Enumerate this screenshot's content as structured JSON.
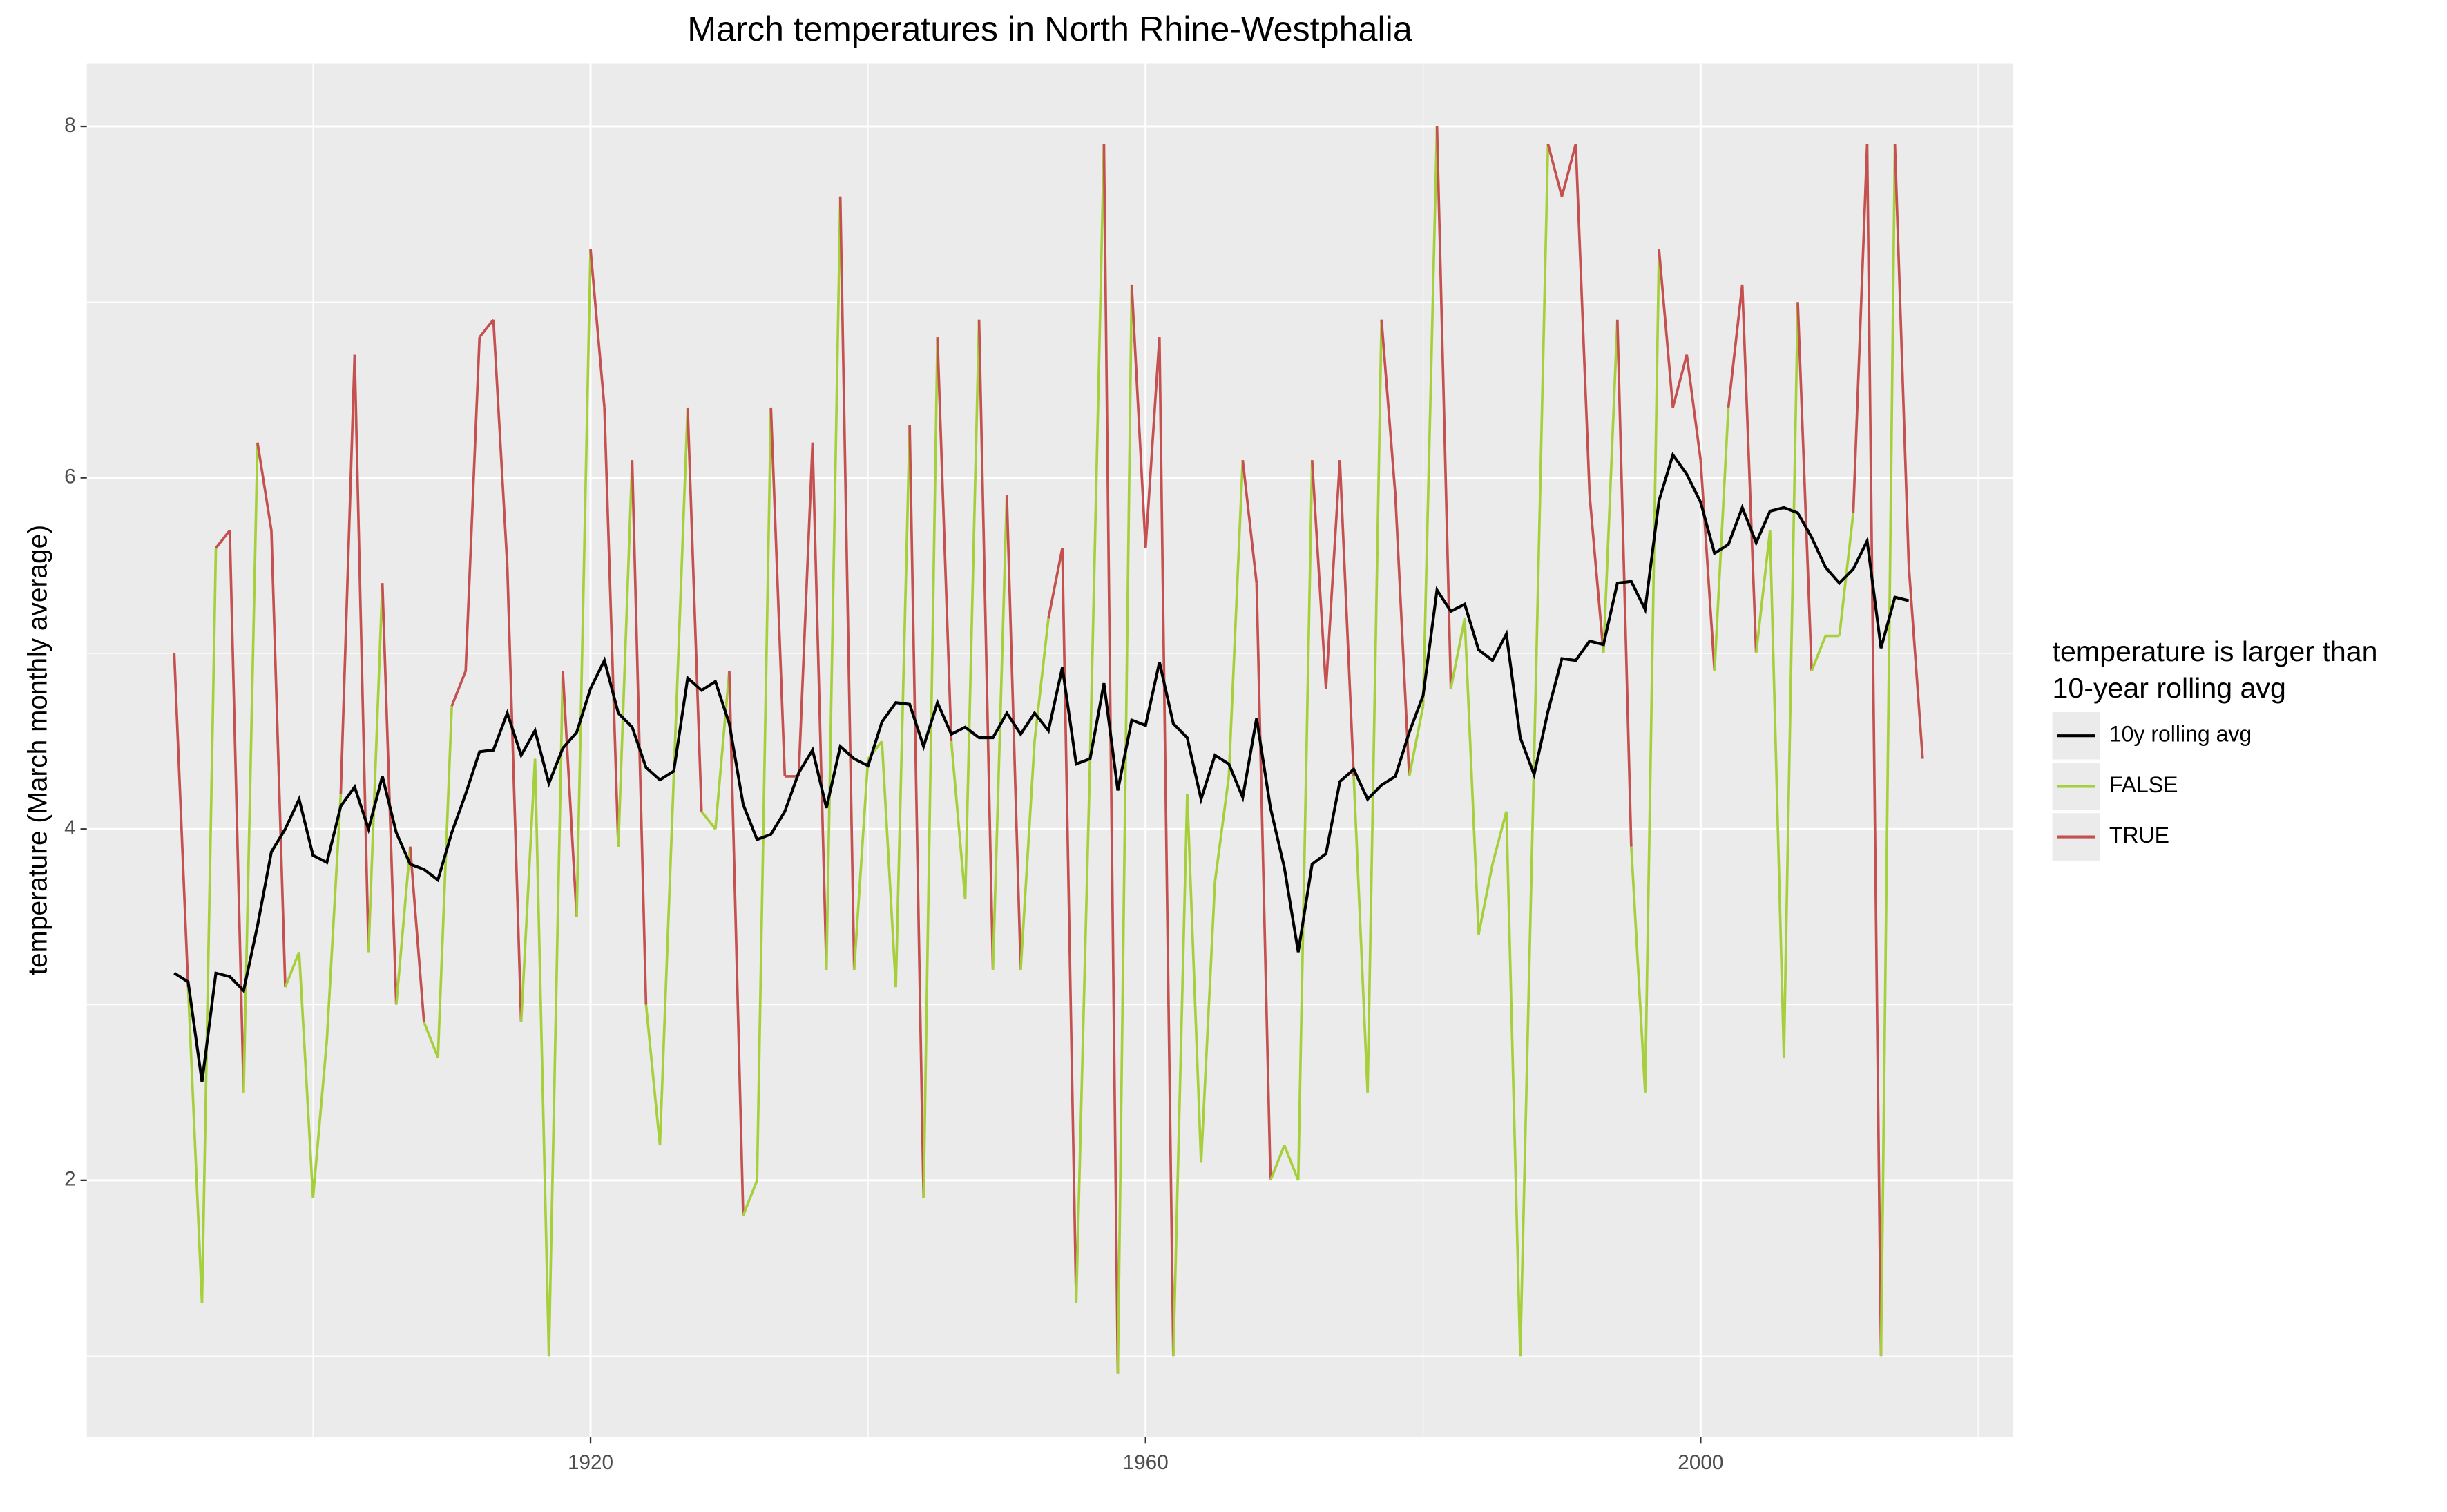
{
  "chart_data": {
    "type": "line",
    "title": "March temperatures in North Rhine-Westphalia",
    "ylabel": "temperature (March monthly average)",
    "legend_title": [
      "temperature is larger than",
      "10-year rolling avg"
    ],
    "legend": "right",
    "grid": true,
    "xlim": [
      1883.7,
      2022.5
    ],
    "ylim": [
      0.54,
      8.36
    ],
    "xticks": [
      1920,
      1960,
      2000
    ],
    "yticks": [
      2,
      4,
      6,
      8
    ],
    "x": [
      1890,
      1891,
      1892,
      1893,
      1894,
      1895,
      1896,
      1897,
      1898,
      1899,
      1900,
      1901,
      1902,
      1903,
      1904,
      1905,
      1906,
      1907,
      1908,
      1909,
      1910,
      1911,
      1912,
      1913,
      1914,
      1915,
      1916,
      1917,
      1918,
      1919,
      1920,
      1921,
      1922,
      1923,
      1924,
      1925,
      1926,
      1927,
      1928,
      1929,
      1930,
      1931,
      1932,
      1933,
      1934,
      1935,
      1936,
      1937,
      1938,
      1939,
      1940,
      1941,
      1942,
      1943,
      1944,
      1945,
      1946,
      1947,
      1948,
      1949,
      1950,
      1951,
      1952,
      1953,
      1954,
      1955,
      1956,
      1957,
      1958,
      1959,
      1960,
      1961,
      1962,
      1963,
      1964,
      1965,
      1966,
      1967,
      1968,
      1969,
      1970,
      1971,
      1972,
      1973,
      1974,
      1975,
      1976,
      1977,
      1978,
      1979,
      1980,
      1981,
      1982,
      1983,
      1984,
      1985,
      1986,
      1987,
      1988,
      1989,
      1990,
      1991,
      1992,
      1993,
      1994,
      1995,
      1996,
      1997,
      1998,
      1999,
      2000,
      2001,
      2002,
      2003,
      2004,
      2005,
      2006,
      2007,
      2008,
      2009,
      2010,
      2011,
      2012,
      2013,
      2014,
      2015,
      2016
    ],
    "series": [
      {
        "name": "10y rolling avg",
        "color": "#000000",
        "values": [
          3.18,
          3.13,
          2.56,
          3.18,
          3.16,
          3.08,
          3.45,
          3.87,
          4.0,
          4.17,
          3.85,
          3.81,
          4.13,
          4.24,
          4.0,
          4.3,
          3.98,
          3.8,
          3.77,
          3.71,
          3.98,
          4.2,
          4.44,
          4.45,
          4.66,
          4.42,
          4.56,
          4.26,
          4.46,
          4.55,
          4.8,
          4.96,
          4.66,
          4.58,
          4.35,
          4.28,
          4.33,
          4.86,
          4.79,
          4.84,
          4.6,
          4.14,
          3.94,
          3.97,
          4.1,
          4.32,
          4.45,
          4.12,
          4.47,
          4.4,
          4.36,
          4.61,
          4.72,
          4.71,
          4.47,
          4.72,
          4.54,
          4.58,
          4.52,
          4.52,
          4.66,
          4.54,
          4.66,
          4.56,
          4.92,
          4.37,
          4.4,
          4.83,
          4.22,
          4.62,
          4.59,
          4.95,
          4.6,
          4.52,
          4.17,
          4.42,
          4.37,
          4.18,
          4.63,
          4.12,
          3.78,
          3.3,
          3.8,
          3.86,
          4.27,
          4.34,
          4.17,
          4.25,
          4.3,
          4.55,
          4.76,
          5.36,
          5.24,
          5.28,
          5.02,
          4.96,
          5.11,
          4.52,
          4.31,
          4.67,
          4.97,
          4.96,
          5.07,
          5.05,
          5.4,
          5.41,
          5.25,
          5.87,
          6.13,
          6.02,
          5.86,
          5.57,
          5.62,
          5.83,
          5.63,
          5.81,
          5.83,
          5.8,
          5.66,
          5.49,
          5.4,
          5.48,
          5.64,
          5.03,
          5.32,
          5.3,
          null
        ]
      },
      {
        "name": "FALSE",
        "color": "#a6cf3c",
        "values": [
          null,
          3.1,
          1.3,
          null,
          null,
          2.5,
          null,
          null,
          3.1,
          3.3,
          1.9,
          2.8,
          null,
          null,
          3.3,
          null,
          3.0,
          null,
          2.9,
          2.7,
          null,
          null,
          null,
          null,
          null,
          2.9,
          4.4,
          1.0,
          null,
          3.5,
          null,
          null,
          3.9,
          null,
          3.0,
          2.2,
          4.3,
          null,
          4.1,
          4.0,
          null,
          1.8,
          2.0,
          null,
          null,
          null,
          null,
          3.2,
          null,
          3.2,
          4.4,
          4.5,
          3.1,
          null,
          1.9,
          null,
          4.5,
          3.6,
          null,
          3.2,
          null,
          3.2,
          4.5,
          null,
          null,
          1.3,
          4.4,
          null,
          0.9,
          null,
          null,
          null,
          1.0,
          4.2,
          2.1,
          3.7,
          4.3,
          null,
          null,
          2.0,
          2.2,
          2.0,
          null,
          null,
          null,
          4.3,
          2.5,
          null,
          null,
          4.3,
          4.7,
          null,
          4.8,
          5.2,
          3.4,
          3.8,
          4.1,
          1.0,
          4.4,
          null,
          null,
          null,
          null,
          5.0,
          null,
          3.9,
          2.5,
          null,
          null,
          null,
          null,
          4.9,
          null,
          null,
          5.0,
          5.7,
          2.7,
          null,
          4.9,
          5.1,
          5.1,
          null,
          null,
          1.0,
          null,
          null,
          4.4
        ]
      },
      {
        "name": "TRUE",
        "color": "#c4504f",
        "values": [
          5.0,
          null,
          null,
          5.6,
          5.7,
          null,
          6.2,
          5.7,
          null,
          null,
          null,
          null,
          4.2,
          6.7,
          null,
          5.4,
          null,
          3.9,
          null,
          null,
          4.7,
          4.9,
          6.8,
          6.9,
          5.5,
          null,
          null,
          null,
          4.9,
          null,
          7.3,
          6.4,
          null,
          6.1,
          null,
          null,
          null,
          6.4,
          null,
          null,
          4.9,
          null,
          null,
          6.4,
          4.3,
          4.3,
          6.2,
          null,
          7.6,
          null,
          null,
          null,
          null,
          6.3,
          null,
          6.8,
          null,
          null,
          6.9,
          null,
          5.9,
          null,
          null,
          5.2,
          5.6,
          null,
          null,
          7.9,
          null,
          7.1,
          5.6,
          6.8,
          null,
          null,
          null,
          null,
          null,
          6.1,
          5.4,
          null,
          null,
          null,
          6.1,
          4.8,
          6.1,
          null,
          null,
          6.9,
          5.9,
          null,
          null,
          8.0,
          null,
          null,
          null,
          null,
          null,
          null,
          null,
          7.9,
          7.6,
          7.9,
          5.9,
          null,
          6.9,
          null,
          null,
          7.3,
          6.4,
          6.7,
          6.1,
          null,
          6.4,
          7.1,
          null,
          null,
          null,
          7.0,
          null,
          null,
          null,
          5.8,
          7.9,
          null,
          7.9,
          5.5,
          null
        ]
      }
    ]
  }
}
